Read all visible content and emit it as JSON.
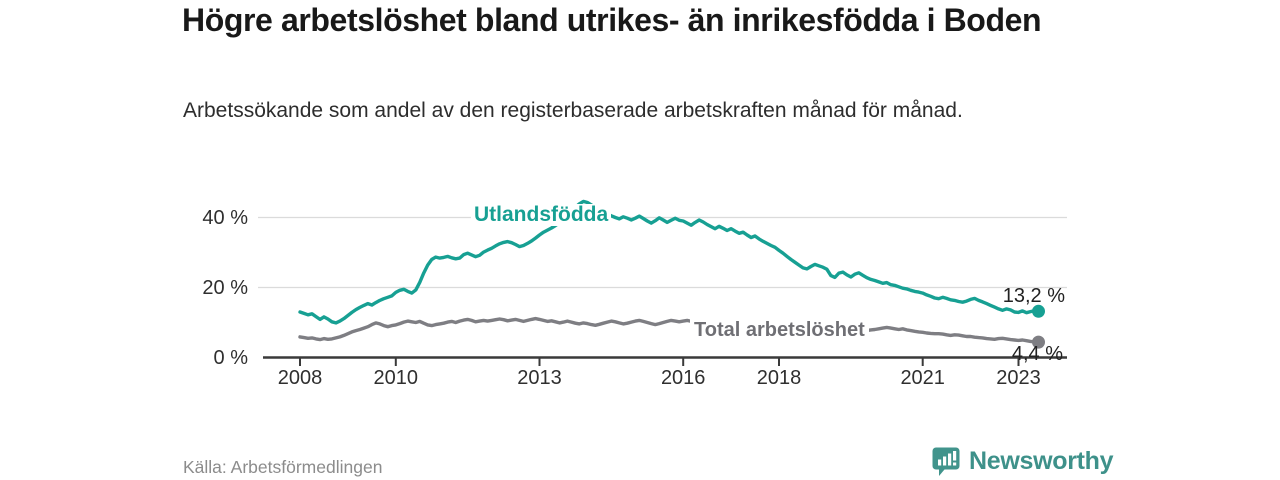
{
  "title": "Högre arbetslöshet bland utrikes- än inrikesfödda i Boden",
  "subtitle": "Arbetssökande som andel av den registerbaserade arbetskraften månad för månad.",
  "source": "Källa: Arbetsförmedlingen",
  "logo": {
    "text": "Newsworthy",
    "color": "#3e918a",
    "icon": "bar-chart-speech-bubble-icon"
  },
  "colors": {
    "utlandsfodda_line": "#17a093",
    "total_line": "#7e7e83",
    "gridline": "#dbdbdb",
    "axis": "#3a3a3a",
    "value_label": "#222222"
  },
  "chart_data": {
    "type": "line",
    "title": "Högre arbetslöshet bland utrikes- än inrikesfödda i Boden",
    "xlabel": "",
    "ylabel": "Arbetssökande som andel av den registerbaserade arbetskraften",
    "x_start": "2008-01",
    "x_interval": "month",
    "x_end": "2023-06",
    "xlim": [
      2007.3,
      2023.9
    ],
    "ylim": [
      0,
      46
    ],
    "grid": true,
    "legend": "inline-labels",
    "y_ticks": [
      {
        "value": 0,
        "label": "0 %"
      },
      {
        "value": 20,
        "label": "20 %"
      },
      {
        "value": 40,
        "label": "40 %"
      }
    ],
    "x_ticks": [
      {
        "value": 2008,
        "label": "2008"
      },
      {
        "value": 2010,
        "label": "2010"
      },
      {
        "value": 2013,
        "label": "2013"
      },
      {
        "value": 2016,
        "label": "2016"
      },
      {
        "value": 2018,
        "label": "2018"
      },
      {
        "value": 2021,
        "label": "2021"
      },
      {
        "value": 2023,
        "label": "2023"
      }
    ],
    "series": [
      {
        "id": "utlandsfodda",
        "name": "Utlandsfödda",
        "color": "#17a093",
        "end_value": 13.2,
        "end_label": "13,2 %",
        "values": [
          13.0,
          12.6,
          12.2,
          12.5,
          11.7,
          10.9,
          11.6,
          11.0,
          10.2,
          9.9,
          10.4,
          11.1,
          12.0,
          12.9,
          13.7,
          14.3,
          14.9,
          15.4,
          15.0,
          15.7,
          16.3,
          16.8,
          17.2,
          17.6,
          18.6,
          19.2,
          19.5,
          18.9,
          18.4,
          19.3,
          21.5,
          24.1,
          26.4,
          28.0,
          28.7,
          28.4,
          28.6,
          28.9,
          28.5,
          28.2,
          28.4,
          29.4,
          29.8,
          29.3,
          28.8,
          29.2,
          30.1,
          30.7,
          31.2,
          31.9,
          32.5,
          32.9,
          33.1,
          32.8,
          32.3,
          31.7,
          32.0,
          32.6,
          33.3,
          34.1,
          35.0,
          35.8,
          36.4,
          37.0,
          37.7,
          38.5,
          39.4,
          40.5,
          41.7,
          42.9,
          43.9,
          44.6,
          44.3,
          43.6,
          42.9,
          42.2,
          41.6,
          41.0,
          40.5,
          40.0,
          39.6,
          40.2,
          39.8,
          39.3,
          39.8,
          40.4,
          39.7,
          39.0,
          38.4,
          39.1,
          39.9,
          39.3,
          38.6,
          39.2,
          39.8,
          39.2,
          39.0,
          38.4,
          37.8,
          38.6,
          39.3,
          38.7,
          38.0,
          37.4,
          36.8,
          37.5,
          36.9,
          36.3,
          36.8,
          36.1,
          35.5,
          35.8,
          35.0,
          34.3,
          34.7,
          33.9,
          33.2,
          32.6,
          32.0,
          31.5,
          30.6,
          29.8,
          28.9,
          28.0,
          27.2,
          26.4,
          25.6,
          25.3,
          26.0,
          26.6,
          26.2,
          25.8,
          25.2,
          23.4,
          22.9,
          24.1,
          24.4,
          23.6,
          23.0,
          23.8,
          24.2,
          23.5,
          22.8,
          22.3,
          22.0,
          21.6,
          21.2,
          21.4,
          20.8,
          20.6,
          20.2,
          19.8,
          19.6,
          19.2,
          18.9,
          18.7,
          18.4,
          17.9,
          17.5,
          17.0,
          16.8,
          17.2,
          16.9,
          16.5,
          16.3,
          16.0,
          15.8,
          16.1,
          16.6,
          16.9,
          16.3,
          15.9,
          15.4,
          14.9,
          14.4,
          13.9,
          13.5,
          13.9,
          13.6,
          13.0,
          12.9,
          13.3,
          12.8,
          13.1,
          13.4,
          13.2
        ]
      },
      {
        "id": "total-arbetsloshet",
        "name": "Total arbetslöshet",
        "color": "#7e7e83",
        "end_value": 4.4,
        "end_label": "4,4 %",
        "values": [
          5.9,
          5.7,
          5.5,
          5.6,
          5.3,
          5.1,
          5.4,
          5.2,
          5.3,
          5.6,
          5.9,
          6.3,
          6.8,
          7.3,
          7.7,
          8.0,
          8.4,
          8.8,
          9.4,
          9.9,
          9.6,
          9.1,
          8.8,
          9.1,
          9.3,
          9.7,
          10.1,
          10.4,
          10.2,
          10.0,
          10.3,
          9.8,
          9.3,
          9.1,
          9.4,
          9.6,
          9.8,
          10.1,
          10.3,
          10.0,
          10.4,
          10.7,
          10.9,
          10.6,
          10.2,
          10.4,
          10.6,
          10.4,
          10.6,
          10.8,
          11.0,
          10.8,
          10.5,
          10.7,
          10.9,
          10.6,
          10.3,
          10.6,
          10.9,
          11.1,
          10.9,
          10.6,
          10.3,
          10.5,
          10.2,
          9.9,
          10.1,
          10.4,
          10.1,
          9.8,
          9.6,
          9.9,
          9.7,
          9.4,
          9.2,
          9.5,
          9.8,
          10.1,
          10.4,
          10.2,
          9.9,
          9.6,
          9.8,
          10.1,
          10.4,
          10.6,
          10.3,
          10.0,
          9.7,
          9.4,
          9.7,
          10.0,
          10.3,
          10.6,
          10.4,
          10.2,
          10.4,
          10.6,
          10.3,
          10.0,
          10.2,
          10.5,
          10.3,
          10.0,
          9.8,
          10.0,
          10.2,
          10.0,
          9.8,
          9.6,
          9.4,
          9.6,
          9.4,
          9.2,
          9.0,
          9.2,
          9.0,
          8.8,
          8.7,
          8.9,
          8.7,
          8.5,
          8.4,
          8.6,
          8.4,
          8.2,
          8.1,
          8.3,
          8.1,
          8.0,
          7.9,
          8.1,
          8.0,
          7.9,
          7.8,
          8.0,
          7.8,
          7.7,
          7.9,
          7.8,
          7.6,
          7.8,
          7.7,
          7.9,
          8.0,
          8.2,
          8.4,
          8.6,
          8.4,
          8.2,
          8.0,
          8.2,
          7.9,
          7.7,
          7.5,
          7.3,
          7.2,
          7.0,
          6.9,
          6.8,
          6.8,
          6.7,
          6.5,
          6.3,
          6.5,
          6.4,
          6.2,
          6.0,
          6.0,
          5.8,
          5.7,
          5.6,
          5.4,
          5.3,
          5.2,
          5.4,
          5.5,
          5.3,
          5.1,
          5.0,
          4.9,
          5.0,
          4.8,
          4.6,
          4.5,
          4.4
        ]
      }
    ]
  }
}
